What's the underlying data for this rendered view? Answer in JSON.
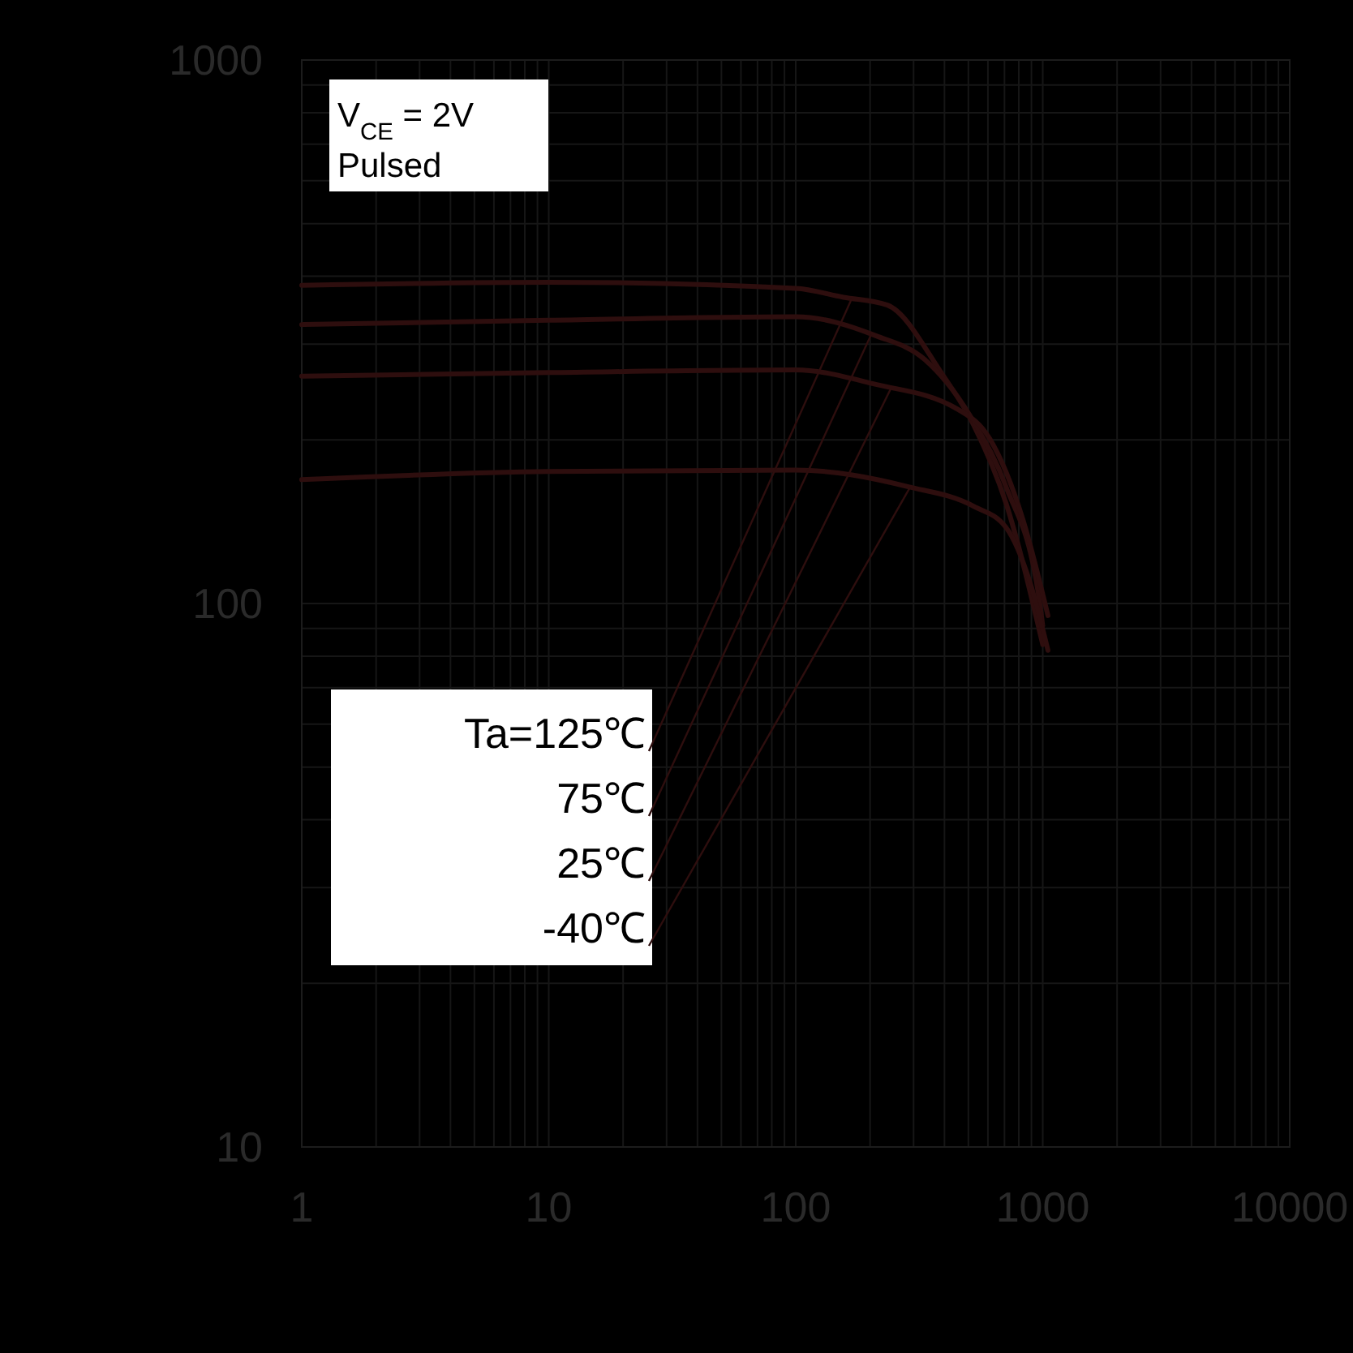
{
  "chart_data": {
    "type": "line",
    "log": "xy",
    "xlim": [
      1,
      10000
    ],
    "ylim": [
      10,
      1000
    ],
    "xticks": [
      1,
      10,
      100,
      1000,
      10000
    ],
    "yticks": [
      10,
      100,
      1000
    ],
    "grid": true,
    "legend": "bottom left",
    "marker": "none",
    "line_style": "solid",
    "annotations": [
      "V$_{CE}$ = 2V",
      "Pulsed"
    ],
    "series": [
      {
        "name": "Ta=125℃",
        "color": "#2e0e0e",
        "x": [
          1,
          10,
          100,
          156,
          235,
          390,
          525,
          710,
          1000
        ],
        "values": [
          385,
          390,
          380,
          366,
          354,
          265,
          213,
          153,
          84
        ]
      },
      {
        "name": "75℃",
        "color": "#2e0e0e",
        "x": [
          1,
          10,
          100,
          211,
          333,
          525,
          710,
          970,
          1000
        ],
        "values": [
          326,
          332,
          337,
          311,
          281,
          216,
          164,
          101,
          91
        ]
      },
      {
        "name": "25℃",
        "color": "#2e0e0e",
        "x": [
          1,
          10,
          100,
          211,
          450,
          610,
          830,
          1050
        ],
        "values": [
          262,
          266,
          269,
          253,
          228,
          201,
          143,
          95
        ]
      },
      {
        "name": "-40℃",
        "color": "#2e0e0e",
        "x": [
          1,
          10,
          100,
          286,
          525,
          710,
          890,
          1050
        ],
        "values": [
          169,
          175,
          176,
          164,
          151,
          138,
          109,
          82
        ]
      }
    ]
  }
}
